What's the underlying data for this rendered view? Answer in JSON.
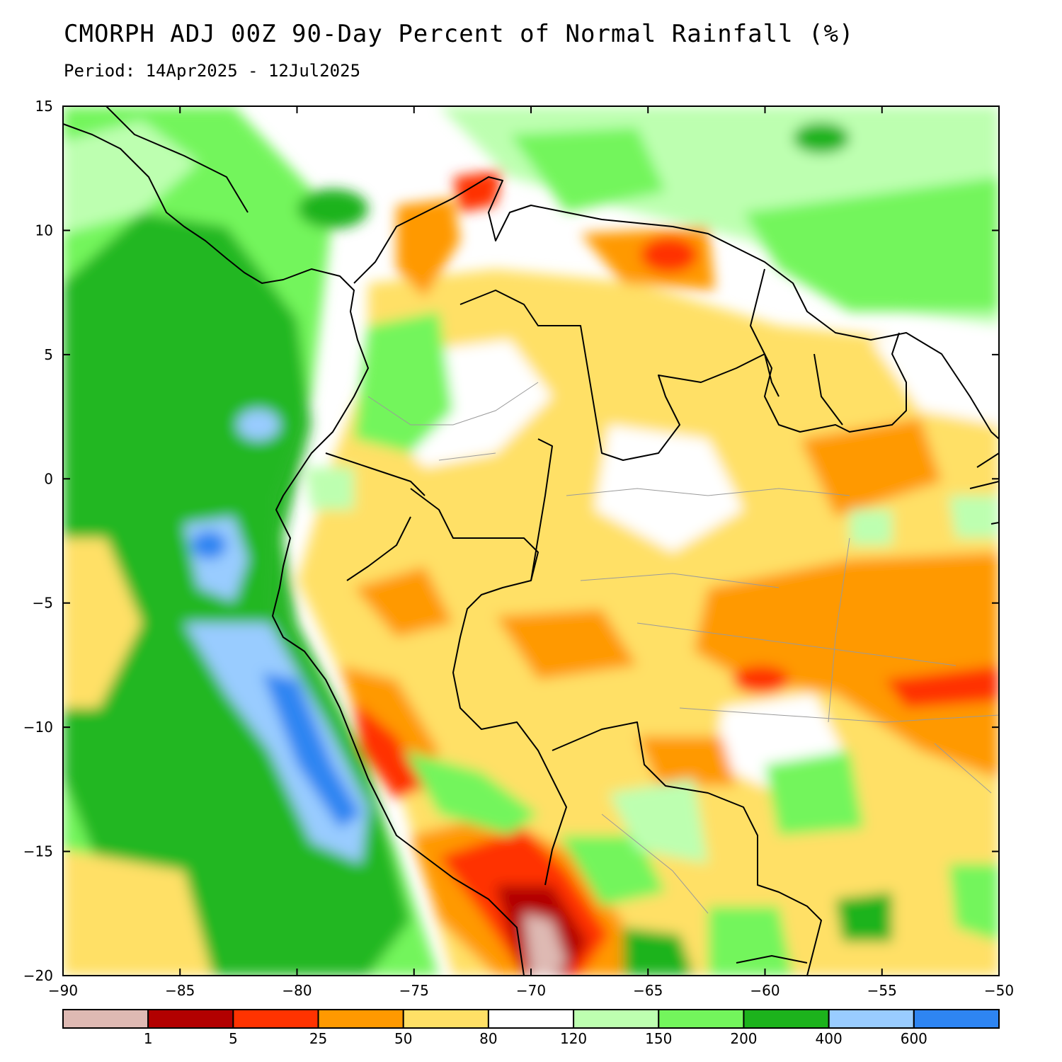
{
  "title": "CMORPH ADJ 00Z 90-Day Percent of Normal Rainfall (%)",
  "subtitle": "Period: 14Apr2025 - 12Jul2025",
  "map": {
    "lon_range": [
      -90,
      -50
    ],
    "lat_range": [
      -20,
      15
    ],
    "lon_ticks": [
      "-90",
      "-85",
      "-80",
      "-75",
      "-70",
      "-65",
      "-60",
      "-55",
      "-50"
    ],
    "lat_ticks": [
      "15",
      "10",
      "5",
      "0",
      "-5",
      "-10",
      "-15",
      "-20"
    ]
  },
  "colorbar": {
    "colors": [
      "#deb9b3",
      "#b20000",
      "#ff3300",
      "#ff9900",
      "#ffe066",
      "#ffffff",
      "#bdffb0",
      "#73f55c",
      "#1cb31c",
      "#99ccff",
      "#2e85f2"
    ],
    "labels": [
      "1",
      "5",
      "25",
      "50",
      "80",
      "120",
      "150",
      "200",
      "400",
      "600"
    ]
  }
}
